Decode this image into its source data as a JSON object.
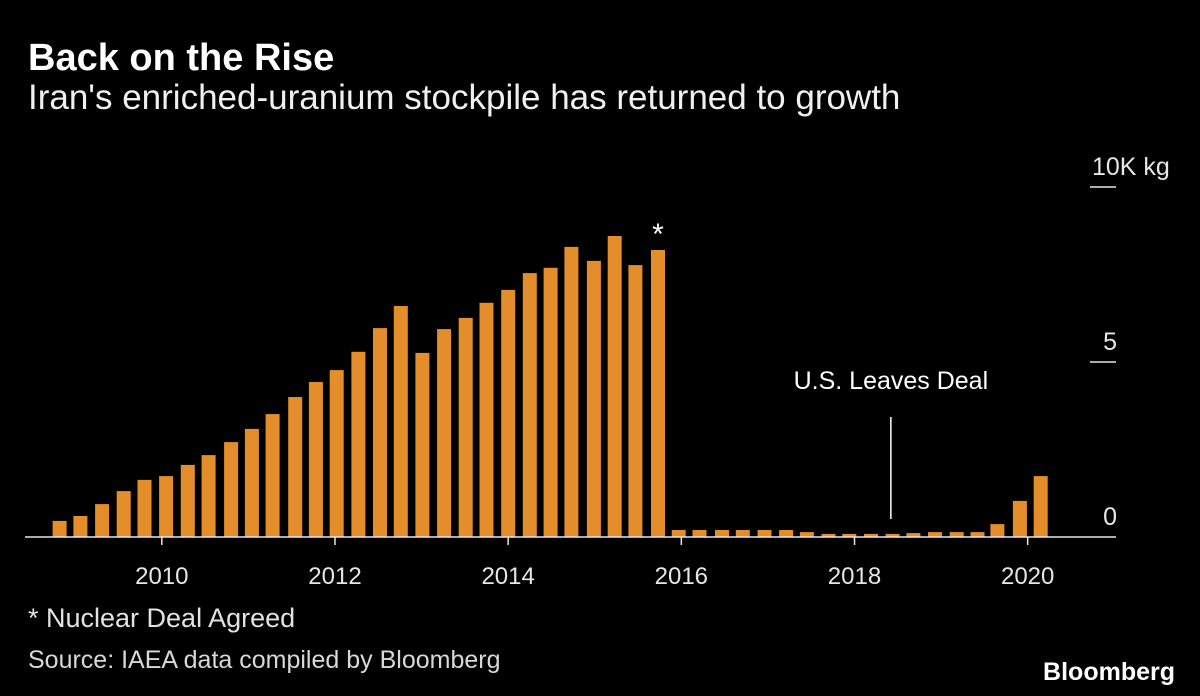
{
  "chart_data": {
    "type": "bar",
    "title": "Back on the Rise",
    "subtitle": "Iran's enriched-uranium stockpile has returned to growth",
    "x": [
      2008.82,
      2009.06,
      2009.31,
      2009.56,
      2009.8,
      2010.05,
      2010.3,
      2010.54,
      2010.8,
      2011.04,
      2011.28,
      2011.54,
      2011.78,
      2012.02,
      2012.27,
      2012.52,
      2012.76,
      2013.01,
      2013.26,
      2013.51,
      2013.75,
      2014.0,
      2014.25,
      2014.49,
      2014.73,
      2014.99,
      2015.23,
      2015.47,
      2015.73,
      2015.97,
      2016.21,
      2016.47,
      2016.71,
      2016.96,
      2017.21,
      2017.45,
      2017.7,
      2017.94,
      2018.19,
      2018.44,
      2018.68,
      2018.93,
      2019.18,
      2019.42,
      2019.65,
      2019.91,
      2020.15
    ],
    "values": [
      0.46,
      0.6,
      0.94,
      1.31,
      1.63,
      1.74,
      2.06,
      2.34,
      2.71,
      3.09,
      3.51,
      4.0,
      4.43,
      4.77,
      5.29,
      5.97,
      6.6,
      5.26,
      5.94,
      6.26,
      6.69,
      7.06,
      7.54,
      7.69,
      8.29,
      7.89,
      8.6,
      7.77,
      8.2,
      0.2,
      0.2,
      0.2,
      0.2,
      0.2,
      0.2,
      0.14,
      0.09,
      0.09,
      0.09,
      0.09,
      0.11,
      0.14,
      0.14,
      0.14,
      0.37,
      1.03,
      1.74
    ],
    "xlim": [
      2008.42,
      2021.02
    ],
    "ylim": [
      0,
      10
    ],
    "grid": false,
    "yticks": [
      {
        "value": 0,
        "label": "0"
      },
      {
        "value": 5,
        "label": "5"
      },
      {
        "value": 10,
        "label": "10K kg"
      }
    ],
    "xticks": [
      {
        "value": 2010,
        "label": "2010"
      },
      {
        "value": 2012,
        "label": "2012"
      },
      {
        "value": 2014,
        "label": "2014"
      },
      {
        "value": 2016,
        "label": "2016"
      },
      {
        "value": 2018,
        "label": "2018"
      },
      {
        "value": 2020,
        "label": "2020"
      }
    ],
    "deal_marker": {
      "text": "*",
      "bar_index": 28
    },
    "annotations": [
      {
        "text": "U.S. Leaves Deal",
        "x": 2018.42
      }
    ],
    "footnote": "* Nuclear Deal Agreed",
    "source": "Source: IAEA data compiled by Bloomberg"
  },
  "brand": {
    "logo_text": "Bloomberg"
  },
  "colors": {
    "background": "#000000",
    "bar": "#E48E2B",
    "text": "#FFFFFF",
    "axis": "#E6E6E6"
  }
}
